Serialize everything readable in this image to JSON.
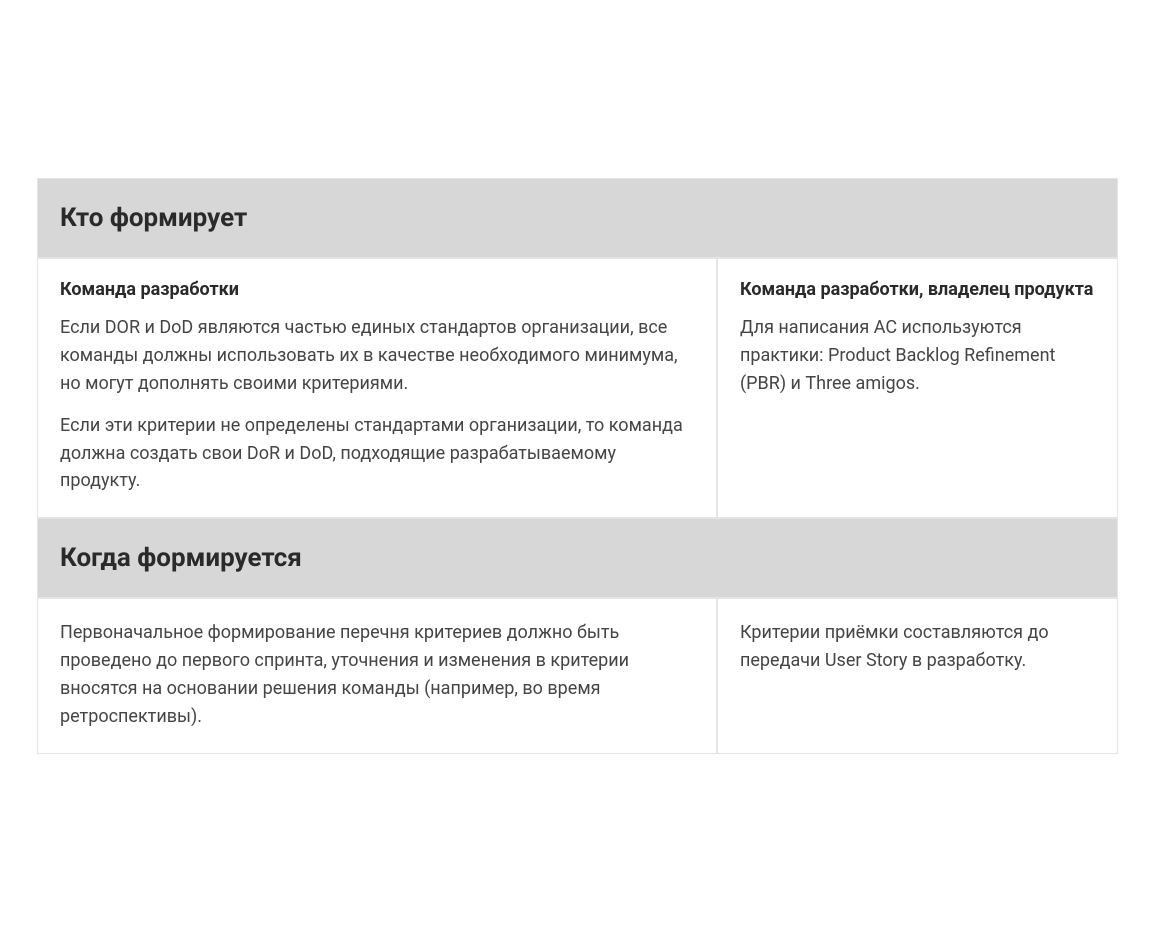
{
  "sections": [
    {
      "header": "Кто формирует",
      "columns": [
        {
          "title": "Команда разработки",
          "paragraphs": [
            "Если DOR и DoD являются частью единых стандартов организации, все команды должны использовать их в качестве необходимого минимума, но могут дополнять своими критериями.",
            "Если эти критерии не определены стандартами организации, то команда должна создать свои DoR и DoD, подходящие разрабатываемому продукту."
          ]
        },
        {
          "title": "Команда разработки, владелец продукта",
          "paragraphs": [
            "Для написания AC используются практики: Product Backlog Refinement (PBR) и Three amigos."
          ]
        }
      ]
    },
    {
      "header": "Когда формируется",
      "columns": [
        {
          "title": "",
          "paragraphs": [
            "Первоначальное формирование перечня критериев должно быть проведено до первого спринта, уточнения и изменения в критерии вносятся на основании решения команды (например, во время ретроспективы)."
          ]
        },
        {
          "title": "",
          "paragraphs": [
            "Критерии приёмки составляются до передачи User Story в разработку."
          ]
        }
      ]
    }
  ],
  "styling": {
    "header_bg": "#d7d7d7",
    "cell_bg": "#ffffff",
    "border_color": "#e5e5e5",
    "header_font_size": 26,
    "title_font_size": 18,
    "body_font_size": 18,
    "header_color": "#2a2a2a",
    "title_color": "#2a2a2a",
    "body_color": "#454545",
    "left_column_width": 680,
    "line_height": 1.55
  }
}
